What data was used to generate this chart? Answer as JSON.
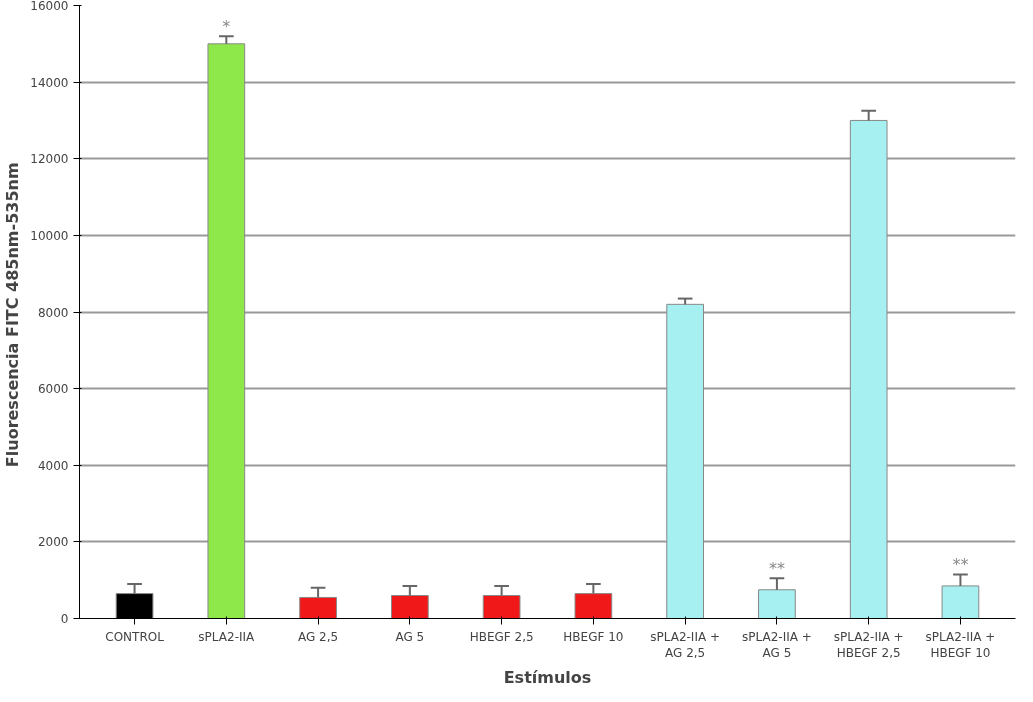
{
  "chart_data": {
    "type": "bar",
    "xlabel": "Estímulos",
    "ylabel": "Fluorescencia FITC  485nm-535nm",
    "categories": [
      "CONTROL",
      "sPLA2-IIA",
      "AG 2,5",
      "AG 5",
      "HBEGF 2,5",
      "HBEGF 10",
      "sPLA2-IIA +\nAG 2,5",
      "sPLA2-IIA +\nAG 5",
      "sPLA2-IIA +\nHBEGF 2,5",
      "sPLA2-IIA +\nHBEGF 10"
    ],
    "values": [
      650,
      15000,
      550,
      600,
      600,
      650,
      8200,
      750,
      13000,
      850
    ],
    "errors": [
      250,
      200,
      250,
      250,
      250,
      250,
      150,
      300,
      250,
      300
    ],
    "colors": [
      "#000000",
      "#8ee84a",
      "#f01818",
      "#f01818",
      "#f01818",
      "#f01818",
      "#a6f0f2",
      "#a6f0f2",
      "#a6f0f2",
      "#a6f0f2"
    ],
    "ylim": [
      0,
      16000
    ],
    "yticks": [
      0,
      2000,
      4000,
      6000,
      8000,
      10000,
      12000,
      14000,
      16000
    ],
    "grid": "y",
    "annotations": [
      {
        "text": "*",
        "x": "sPLA2-IIA",
        "y": 15200
      },
      {
        "text": "**",
        "x": "sPLA2-IIA +\nAG 5",
        "y": 1050
      },
      {
        "text": "**",
        "x": "sPLA2-IIA +\nHBEGF 10",
        "y": 1150
      }
    ]
  }
}
